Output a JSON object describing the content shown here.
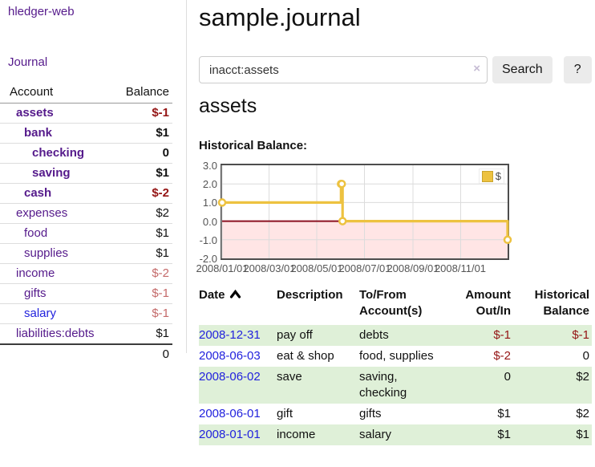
{
  "app": {
    "brand": "hledger-web"
  },
  "sidebar": {
    "journal_link": "Journal",
    "table_headers": {
      "account": "Account",
      "balance": "Balance"
    },
    "accounts": [
      {
        "name": "assets",
        "balance": "$-1",
        "depth": 1,
        "in_acct": true
      },
      {
        "name": "bank",
        "balance": "$1",
        "depth": 2,
        "in_acct": true
      },
      {
        "name": "checking",
        "balance": "0",
        "depth": 3,
        "in_acct": true
      },
      {
        "name": "saving",
        "balance": "$1",
        "depth": 3,
        "in_acct": true
      },
      {
        "name": "cash",
        "balance": "$-2",
        "depth": 2,
        "in_acct": true
      },
      {
        "name": "expenses",
        "balance": "$2",
        "depth": 1
      },
      {
        "name": "food",
        "balance": "$1",
        "depth": 2
      },
      {
        "name": "supplies",
        "balance": "$1",
        "depth": 2
      },
      {
        "name": "income",
        "balance": "$-2",
        "depth": 1
      },
      {
        "name": "gifts",
        "balance": "$-1",
        "depth": 2
      },
      {
        "name": "salary",
        "balance": "$-1",
        "depth": 2,
        "unvisited": true
      },
      {
        "name": "liabilities:debts",
        "balance": "$1",
        "depth": 1
      }
    ],
    "total_balance": "0"
  },
  "header": {
    "title": "sample.journal"
  },
  "search": {
    "value": "inacct:assets",
    "clear_icon": "×",
    "search_button": "Search",
    "help_button": "?"
  },
  "account_page": {
    "title": "assets",
    "chart_heading": "Historical Balance:"
  },
  "chart_data": {
    "type": "line",
    "step": true,
    "title": "Historical Balance:",
    "series": [
      {
        "name": "$",
        "points": [
          [
            "2008-01-01",
            1
          ],
          [
            "2008-06-01",
            2
          ],
          [
            "2008-06-02",
            2
          ],
          [
            "2008-06-03",
            0
          ],
          [
            "2008-12-31",
            -1
          ]
        ]
      }
    ],
    "xrange": [
      "2008-01-01",
      "2008-12-31"
    ],
    "ylim": [
      -2,
      3
    ],
    "yticks": [
      3,
      2,
      1,
      0,
      -1,
      -2
    ],
    "ytick_labels": [
      "3.0",
      "2.0",
      "1.0",
      "0.0",
      "-1.0",
      "-2.0"
    ],
    "xticks": [
      "2008-01-01",
      "2008-03-01",
      "2008-05-01",
      "2008-07-01",
      "2008-09-01",
      "2008-11-01"
    ],
    "xtick_labels": [
      "2008/01/01",
      "2008/03/01",
      "2008/05/01",
      "2008/07/01",
      "2008/09/01",
      "2008/11/01"
    ],
    "legend": {
      "label": "$",
      "position": "top-right"
    },
    "grid": true
  },
  "register": {
    "columns": [
      {
        "label": "Date",
        "align": "left",
        "sorted": "asc"
      },
      {
        "label": "Description",
        "align": "left"
      },
      {
        "label": "To/From Account(s)",
        "align": "left"
      },
      {
        "label": "Amount Out/In",
        "align": "right"
      },
      {
        "label": "Historical Balance",
        "align": "right"
      }
    ],
    "rows": [
      {
        "date": "2008-12-31",
        "description": "pay off",
        "accounts": "debts",
        "amount": "$-1",
        "balance": "$-1"
      },
      {
        "date": "2008-06-03",
        "description": "eat & shop",
        "accounts": "food, supplies",
        "amount": "$-2",
        "balance": "0"
      },
      {
        "date": "2008-06-02",
        "description": "save",
        "accounts": "saving,\nchecking",
        "amount": "0",
        "balance": "$2"
      },
      {
        "date": "2008-06-01",
        "description": "gift",
        "accounts": "gifts",
        "amount": "$1",
        "balance": "$2"
      },
      {
        "date": "2008-01-01",
        "description": "income",
        "accounts": "salary",
        "amount": "$1",
        "balance": "$1"
      }
    ]
  },
  "colors": {
    "link_purple": "#551a8b",
    "link_blue": "#2222dd",
    "negative_strong": "#941414",
    "negative_light": "#c46a6a",
    "stripe_green": "#dff0d8",
    "chart_line": "#edc240",
    "chart_zero_line": "#8b1020",
    "chart_negative_fill": "rgba(255,0,0,0.10)",
    "chart_grid": "#dcdcdc",
    "chart_border": "#4d4d4d",
    "chart_text": "#545454"
  }
}
